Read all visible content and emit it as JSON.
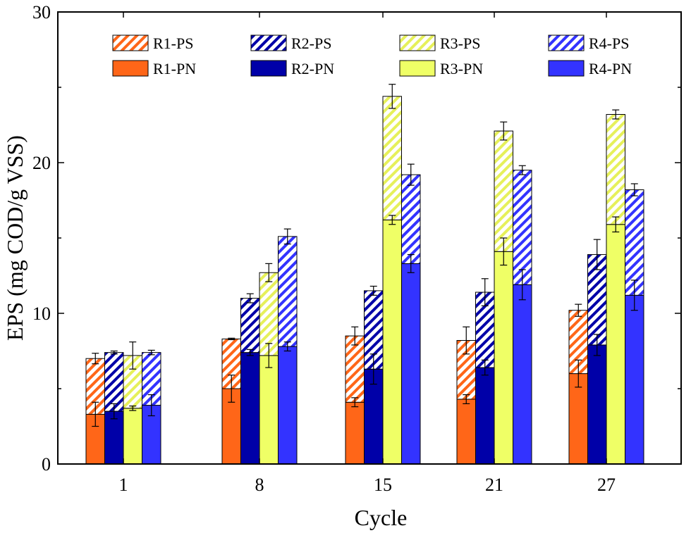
{
  "chart_data": {
    "type": "bar",
    "stacked": true,
    "title": "",
    "xlabel": "Cycle",
    "ylabel": "EPS (mg COD/g VSS)",
    "categories": [
      "1",
      "8",
      "15",
      "21",
      "27"
    ],
    "ylim": [
      0,
      30
    ],
    "yticks": [
      0,
      10,
      20,
      30
    ],
    "grid": false,
    "legend_position": "top",
    "reactors": [
      {
        "pn_name": "R1-PN",
        "ps_name": "R1-PS",
        "color": "#ff6618",
        "hatch_color": "#ff6618",
        "pn": [
          3.3,
          5.0,
          4.1,
          4.3,
          6.0
        ],
        "pn_err": [
          0.8,
          0.9,
          0.3,
          0.3,
          0.9
        ],
        "ps": [
          3.7,
          3.3,
          4.4,
          3.9,
          4.2
        ],
        "total_err": [
          0.35,
          0.05,
          0.6,
          0.9,
          0.4
        ]
      },
      {
        "pn_name": "R2-PN",
        "ps_name": "R2-PS",
        "color": "#0000a8",
        "hatch_color": "#0000a8",
        "pn": [
          3.5,
          7.4,
          6.3,
          6.4,
          7.9
        ],
        "pn_err": [
          0.5,
          0.2,
          1.0,
          0.5,
          0.7
        ],
        "ps": [
          3.9,
          3.6,
          5.2,
          5.0,
          6.0
        ],
        "total_err": [
          0.1,
          0.3,
          0.3,
          0.9,
          1.0
        ]
      },
      {
        "pn_name": "R3-PN",
        "ps_name": "R3-PS",
        "color": "#efff66",
        "hatch_color": "#e6f05a",
        "pn": [
          3.7,
          7.2,
          16.2,
          14.1,
          15.9
        ],
        "pn_err": [
          0.15,
          0.8,
          0.3,
          0.9,
          0.5
        ],
        "ps": [
          3.5,
          5.5,
          8.2,
          8.0,
          7.3
        ],
        "total_err": [
          0.9,
          0.6,
          0.8,
          0.6,
          0.3
        ]
      },
      {
        "pn_name": "R4-PN",
        "ps_name": "R4-PS",
        "color": "#3333ff",
        "hatch_color": "#3333ff",
        "pn": [
          3.9,
          7.8,
          13.3,
          11.9,
          11.2
        ],
        "pn_err": [
          0.7,
          0.3,
          0.6,
          1.0,
          1.0
        ],
        "ps": [
          3.5,
          7.3,
          5.9,
          7.6,
          7.0
        ],
        "total_err": [
          0.15,
          0.5,
          0.7,
          0.3,
          0.4
        ]
      }
    ]
  }
}
